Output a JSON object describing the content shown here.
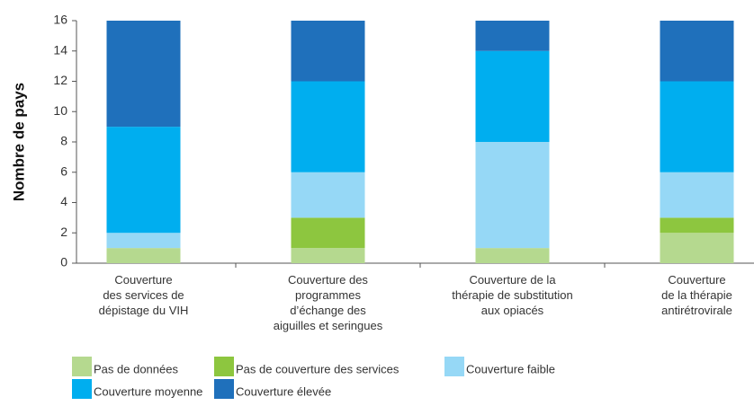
{
  "chart_data": {
    "type": "stacked_bar",
    "ylabel": "Nombre de pays",
    "categories": [
      "Couverture\ndes services de\ndépistage du VIH",
      "Couverture des\nprogrammes\nd’échange des\naiguilles et seringues",
      "Couverture de la\nthérapie de substitution\naux opiacés",
      "Couverture\nde la thérapie\nantirétrovirale"
    ],
    "series": [
      {
        "name": "Pas de données",
        "color": "#b5d98f",
        "values": [
          1,
          1,
          1,
          2
        ]
      },
      {
        "name": "Pas de couverture des services",
        "color": "#8dc63f",
        "values": [
          0,
          2,
          0,
          1
        ]
      },
      {
        "name": "Couverture faible",
        "color": "#96d8f6",
        "values": [
          1,
          3,
          7,
          3
        ]
      },
      {
        "name": "Couverture moyenne",
        "color": "#00aeef",
        "values": [
          7,
          6,
          6,
          6
        ]
      },
      {
        "name": "Couverture élevée",
        "color": "#1f70bb",
        "values": [
          7,
          4,
          2,
          4
        ]
      }
    ],
    "ylim": [
      0,
      16
    ],
    "yticks": [
      0,
      2,
      4,
      6,
      8,
      10,
      12,
      14,
      16
    ],
    "legend": "bottom"
  }
}
